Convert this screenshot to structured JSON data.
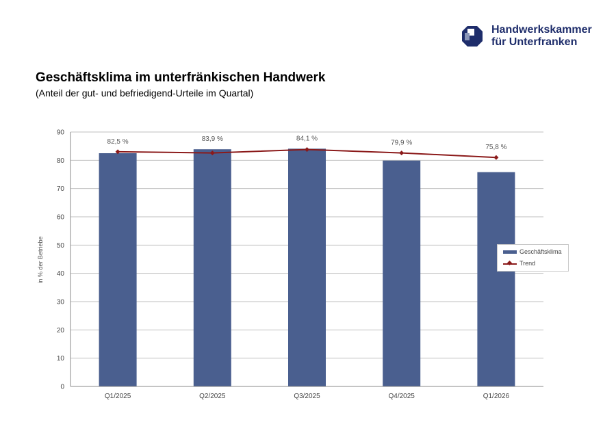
{
  "header": {
    "org_line1": "Handwerkskammer",
    "org_line2": "für Unterfranken",
    "logo_icon": "hwk-logo-icon"
  },
  "title": "Geschäftsklima im unterfränkischen Handwerk",
  "subtitle": "(Anteil der gut- und befriedigend-Urteile im Quartal)",
  "legend": {
    "bar_label": "Geschäftsklima",
    "line_label": "Trend"
  },
  "colors": {
    "bar": "#4a5f8f",
    "trend": "#8b1a1a",
    "grid": "#bfbfbf",
    "brand": "#1e2d6b"
  },
  "chart_data": {
    "type": "bar",
    "title": "Geschäftsklima im unterfränkischen Handwerk",
    "subtitle": "(Anteil der gut- und befriedigend-Urteile im Quartal)",
    "xlabel": "",
    "ylabel": "in % der Betriebe",
    "ylim": [
      0,
      90
    ],
    "yticks": [
      0,
      10,
      20,
      30,
      40,
      50,
      60,
      70,
      80,
      90
    ],
    "grid": true,
    "legend_position": "right",
    "categories": [
      "Q1/2025",
      "Q2/2025",
      "Q3/2025",
      "Q4/2025",
      "Q1/2026"
    ],
    "series": [
      {
        "name": "Geschäftsklima",
        "type": "bar",
        "values": [
          82.5,
          83.9,
          84.1,
          79.9,
          75.8
        ],
        "labels": [
          "82,5 %",
          "83,9 %",
          "84,1 %",
          "79,9 %",
          "75,8 %"
        ]
      },
      {
        "name": "Trend",
        "type": "line",
        "values": [
          83.0,
          82.6,
          83.8,
          82.6,
          81.0
        ]
      }
    ]
  }
}
